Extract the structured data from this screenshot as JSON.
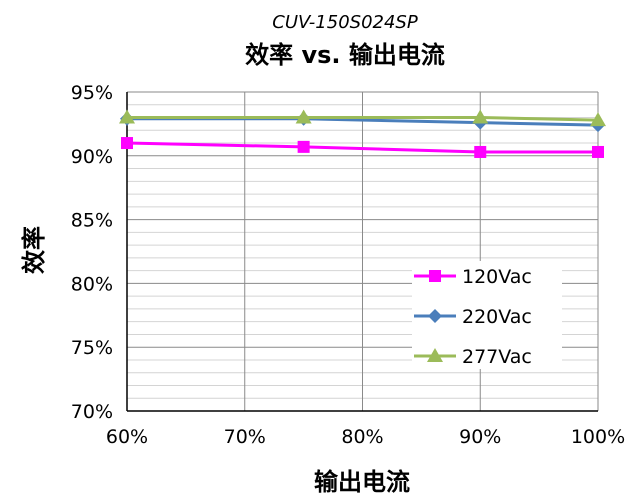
{
  "chart_data": {
    "type": "line",
    "model": "CUV-150S024SP",
    "title": "效率 vs. 输出电流",
    "xlabel": "输出电流",
    "ylabel": "效率",
    "x": [
      60,
      75,
      90,
      100
    ],
    "xlim": [
      60,
      100
    ],
    "ylim": [
      70,
      95
    ],
    "x_ticks": [
      "60%",
      "70%",
      "80%",
      "90%",
      "100%"
    ],
    "y_ticks": [
      "95%",
      "90%",
      "85%",
      "80%",
      "75%",
      "70%"
    ],
    "grid": true,
    "legend_position": "bottom-right",
    "series": [
      {
        "name": "120Vac",
        "color": "#ff00ff",
        "marker": "square",
        "values": [
          91.0,
          90.7,
          90.3,
          90.3
        ]
      },
      {
        "name": "220Vac",
        "color": "#4a7ebb",
        "marker": "diamond",
        "values": [
          92.9,
          92.9,
          92.6,
          92.4
        ]
      },
      {
        "name": "277Vac",
        "color": "#9bbb59",
        "marker": "triangle",
        "values": [
          93.0,
          93.0,
          93.0,
          92.8
        ]
      }
    ]
  }
}
